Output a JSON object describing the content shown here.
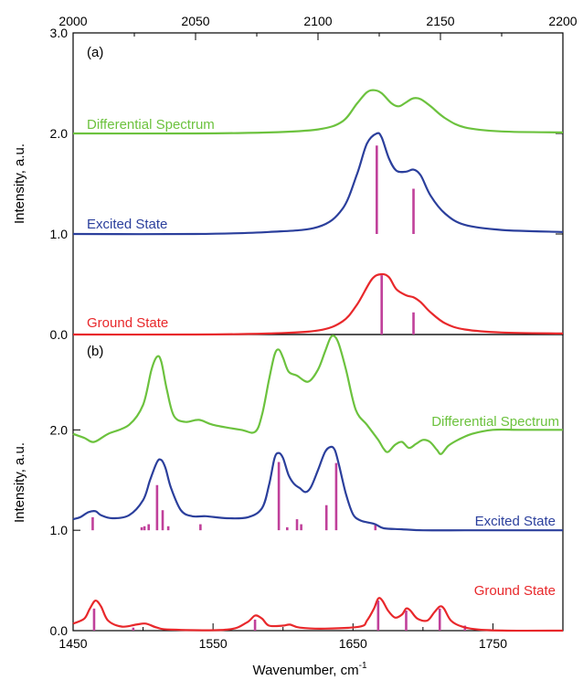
{
  "colors": {
    "differential": "#6cc23e",
    "excited": "#2b3f9c",
    "ground": "#e8282b",
    "sticks": "#c0409a",
    "axis": "#000000"
  },
  "chart_data": [
    {
      "type": "line",
      "panel_label": "(a)",
      "ylabel": "Intensity, a.u.",
      "xaxis_position": "top",
      "xlim": [
        2000,
        2200
      ],
      "ylim": [
        0,
        3
      ],
      "xticks": [
        "2000",
        "2050",
        "2100",
        "2150",
        "2200"
      ],
      "yticks": [
        "0.0",
        "1.0",
        "2.0",
        "3.0"
      ],
      "series": [
        {
          "name": "Differential Spectrum",
          "color": "#6cc23e",
          "x": [
            2000,
            2050,
            2080,
            2100,
            2110,
            2116,
            2120,
            2123,
            2126,
            2130,
            2133,
            2136,
            2139,
            2142,
            2146,
            2152,
            2160,
            2175,
            2200
          ],
          "y": [
            2.0,
            2.0,
            2.01,
            2.04,
            2.12,
            2.3,
            2.41,
            2.43,
            2.4,
            2.3,
            2.27,
            2.31,
            2.35,
            2.34,
            2.27,
            2.15,
            2.06,
            2.02,
            2.01
          ]
        },
        {
          "name": "Excited State",
          "color": "#2b3f9c",
          "x": [
            2000,
            2050,
            2080,
            2100,
            2110,
            2116,
            2120,
            2124,
            2126,
            2129,
            2132,
            2136,
            2139,
            2142,
            2146,
            2152,
            2160,
            2175,
            2200
          ],
          "y": [
            1.0,
            1.0,
            1.02,
            1.07,
            1.25,
            1.6,
            1.9,
            2.0,
            1.96,
            1.75,
            1.63,
            1.62,
            1.64,
            1.58,
            1.38,
            1.2,
            1.09,
            1.04,
            1.02
          ]
        },
        {
          "name": "Ground State",
          "color": "#e8282b",
          "x": [
            2000,
            2050,
            2080,
            2100,
            2110,
            2116,
            2122,
            2126,
            2129,
            2132,
            2136,
            2139,
            2142,
            2146,
            2152,
            2160,
            2175,
            2200
          ],
          "y": [
            0.0,
            0.0,
            0.01,
            0.04,
            0.13,
            0.3,
            0.55,
            0.6,
            0.57,
            0.45,
            0.39,
            0.37,
            0.32,
            0.22,
            0.11,
            0.05,
            0.02,
            0.01
          ]
        }
      ],
      "sticks": [
        {
          "x": 2124,
          "y0": 1.0,
          "y1": 1.88
        },
        {
          "x": 2139,
          "y0": 1.0,
          "y1": 1.45
        },
        {
          "x": 2126,
          "y0": 0.0,
          "y1": 0.59
        },
        {
          "x": 2139,
          "y0": 0.0,
          "y1": 0.22
        }
      ]
    },
    {
      "type": "line",
      "panel_label": "(b)",
      "ylabel": "Intensity, a.u.",
      "xlabel": "Wavenumber, cm",
      "xlabel_superscript": "-1",
      "xlim": [
        1450,
        1800
      ],
      "ylim": [
        0,
        3
      ],
      "xticks": [
        "1450",
        "1550",
        "1650",
        "1750"
      ],
      "yticks": [
        "0.0",
        "1.0",
        "2.0"
      ],
      "series": [
        {
          "name": "Differential Spectrum",
          "color": "#6cc23e",
          "x": [
            1450,
            1458,
            1465,
            1475,
            1490,
            1500,
            1506,
            1510,
            1513,
            1517,
            1522,
            1530,
            1540,
            1550,
            1570,
            1580,
            1585,
            1590,
            1594,
            1597,
            1600,
            1604,
            1610,
            1618,
            1625,
            1630,
            1634,
            1637,
            1640,
            1645,
            1652,
            1660,
            1668,
            1672,
            1675,
            1680,
            1685,
            1690,
            1695,
            1700,
            1705,
            1710,
            1713,
            1718,
            1725,
            1735,
            1750,
            1770,
            1800
          ],
          "y": [
            1.96,
            1.92,
            1.88,
            1.96,
            2.05,
            2.25,
            2.6,
            2.73,
            2.68,
            2.4,
            2.14,
            2.08,
            2.1,
            2.05,
            2.0,
            1.98,
            2.15,
            2.5,
            2.75,
            2.8,
            2.72,
            2.58,
            2.54,
            2.48,
            2.6,
            2.78,
            2.92,
            2.93,
            2.85,
            2.6,
            2.2,
            2.05,
            1.9,
            1.81,
            1.78,
            1.85,
            1.88,
            1.82,
            1.86,
            1.9,
            1.88,
            1.8,
            1.76,
            1.84,
            1.9,
            1.96,
            2.0,
            2.0,
            2.0
          ]
        },
        {
          "name": "Excited State",
          "color": "#2b3f9c",
          "x": [
            1450,
            1455,
            1461,
            1466,
            1470,
            1478,
            1490,
            1500,
            1505,
            1510,
            1513,
            1516,
            1520,
            1527,
            1535,
            1545,
            1560,
            1575,
            1585,
            1590,
            1594,
            1597,
            1600,
            1604,
            1608,
            1612,
            1616,
            1620,
            1625,
            1630,
            1634,
            1637,
            1640,
            1645,
            1650,
            1655,
            1660,
            1666,
            1672,
            1685,
            1700,
            1730,
            1760,
            1800
          ],
          "y": [
            1.11,
            1.13,
            1.18,
            1.19,
            1.15,
            1.12,
            1.15,
            1.3,
            1.5,
            1.68,
            1.7,
            1.62,
            1.42,
            1.2,
            1.14,
            1.14,
            1.12,
            1.13,
            1.22,
            1.45,
            1.72,
            1.77,
            1.72,
            1.55,
            1.46,
            1.42,
            1.38,
            1.43,
            1.6,
            1.78,
            1.83,
            1.8,
            1.65,
            1.36,
            1.16,
            1.1,
            1.08,
            1.06,
            1.02,
            1.01,
            1.0,
            1.0,
            1.0,
            1.0
          ]
        },
        {
          "name": "Ground State",
          "color": "#e8282b",
          "x": [
            1450,
            1458,
            1462,
            1466,
            1470,
            1475,
            1485,
            1495,
            1502,
            1510,
            1520,
            1560,
            1574,
            1580,
            1585,
            1590,
            1600,
            1605,
            1612,
            1630,
            1655,
            1660,
            1665,
            1668,
            1671,
            1675,
            1680,
            1685,
            1688,
            1691,
            1696,
            1703,
            1708,
            1712,
            1715,
            1720,
            1728,
            1740,
            1760,
            1800
          ],
          "y": [
            0.07,
            0.12,
            0.22,
            0.3,
            0.24,
            0.1,
            0.04,
            0.06,
            0.07,
            0.03,
            0.01,
            0.01,
            0.08,
            0.15,
            0.12,
            0.05,
            0.05,
            0.06,
            0.03,
            0.02,
            0.04,
            0.1,
            0.22,
            0.32,
            0.3,
            0.2,
            0.13,
            0.16,
            0.22,
            0.2,
            0.12,
            0.1,
            0.18,
            0.24,
            0.22,
            0.1,
            0.04,
            0.01,
            0.0,
            0.0
          ]
        }
      ],
      "sticks": [
        {
          "x": 1464,
          "y0": 1.0,
          "y1": 1.13
        },
        {
          "x": 1499,
          "y0": 1.0,
          "y1": 1.03
        },
        {
          "x": 1501,
          "y0": 1.0,
          "y1": 1.04
        },
        {
          "x": 1504,
          "y0": 1.0,
          "y1": 1.06
        },
        {
          "x": 1510,
          "y0": 1.0,
          "y1": 1.45
        },
        {
          "x": 1514,
          "y0": 1.0,
          "y1": 1.2
        },
        {
          "x": 1518,
          "y0": 1.0,
          "y1": 1.04
        },
        {
          "x": 1541,
          "y0": 1.0,
          "y1": 1.06
        },
        {
          "x": 1597,
          "y0": 1.0,
          "y1": 1.68
        },
        {
          "x": 1603,
          "y0": 1.0,
          "y1": 1.03
        },
        {
          "x": 1610,
          "y0": 1.0,
          "y1": 1.11
        },
        {
          "x": 1613,
          "y0": 1.0,
          "y1": 1.06
        },
        {
          "x": 1631,
          "y0": 1.0,
          "y1": 1.25
        },
        {
          "x": 1638,
          "y0": 1.0,
          "y1": 1.67
        },
        {
          "x": 1666,
          "y0": 1.0,
          "y1": 1.06
        },
        {
          "x": 1465,
          "y0": 0.0,
          "y1": 0.22
        },
        {
          "x": 1493,
          "y0": 0.0,
          "y1": 0.03
        },
        {
          "x": 1580,
          "y0": 0.0,
          "y1": 0.11
        },
        {
          "x": 1668,
          "y0": 0.0,
          "y1": 0.3
        },
        {
          "x": 1688,
          "y0": 0.0,
          "y1": 0.2
        },
        {
          "x": 1712,
          "y0": 0.0,
          "y1": 0.22
        },
        {
          "x": 1730,
          "y0": 0.0,
          "y1": 0.05
        }
      ]
    }
  ],
  "labels": {
    "a_differential": "Differential Spectrum",
    "a_excited": "Excited State",
    "a_ground": "Ground State",
    "b_differential": "Differential Spectrum",
    "b_excited": "Excited State",
    "b_ground": "Ground State"
  }
}
